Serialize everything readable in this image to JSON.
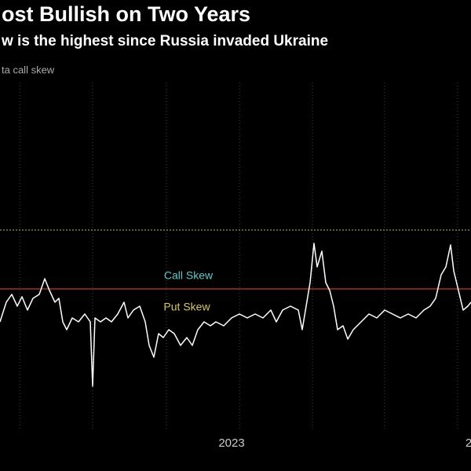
{
  "chart_data": {
    "type": "line",
    "title": "ost Bullish on Two Years",
    "subtitle": "w is the highest since Russia invaded Ukraine",
    "y_label": "ta call skew",
    "xlim": [
      0,
      600
    ],
    "ylim": [
      0,
      500
    ],
    "xgrid": [
      25,
      118,
      212,
      305,
      398,
      490,
      583
    ],
    "xticks": [
      {
        "value": 295,
        "label": "2023"
      },
      {
        "value": 597,
        "label": "2"
      }
    ],
    "series": [
      {
        "name": null,
        "color": "#ffffff",
        "x": [
          0,
          8,
          15,
          22,
          28,
          35,
          42,
          50,
          57,
          63,
          70,
          75,
          80,
          85,
          92,
          100,
          108,
          115,
          118,
          121,
          128,
          135,
          142,
          150,
          158,
          163,
          170,
          178,
          185,
          190,
          196,
          202,
          208,
          215,
          222,
          230,
          238,
          245,
          252,
          260,
          268,
          275,
          285,
          295,
          305,
          315,
          325,
          335,
          345,
          352,
          360,
          370,
          380,
          385,
          390,
          395,
          400,
          404,
          410,
          415,
          420,
          425,
          430,
          437,
          443,
          450,
          460,
          470,
          480,
          490,
          500,
          510,
          520,
          530,
          540,
          548,
          555,
          562,
          568,
          574,
          578,
          584,
          590,
          596,
          600
        ],
        "values": [
          190,
          215,
          225,
          210,
          222,
          205,
          220,
          225,
          245,
          230,
          215,
          220,
          190,
          180,
          195,
          190,
          200,
          190,
          108,
          195,
          190,
          195,
          190,
          200,
          215,
          195,
          205,
          210,
          190,
          160,
          145,
          175,
          170,
          180,
          175,
          160,
          170,
          160,
          180,
          190,
          185,
          190,
          185,
          195,
          200,
          195,
          200,
          195,
          205,
          190,
          205,
          210,
          205,
          180,
          210,
          240,
          290,
          260,
          280,
          240,
          230,
          210,
          180,
          185,
          168,
          180,
          190,
          200,
          195,
          205,
          200,
          195,
          200,
          195,
          205,
          210,
          220,
          250,
          260,
          288,
          255,
          230,
          205,
          210,
          215
        ]
      }
    ],
    "reference_lines": [
      {
        "value": 307,
        "color": "#9c963c",
        "style": "dotted"
      },
      {
        "value": 232,
        "color": "#c0392b",
        "style": "solid"
      }
    ],
    "annotations": [
      {
        "text": "Call Skew",
        "x": 240,
        "y": 248,
        "color": "#5fc7c7"
      },
      {
        "text": "Put Skew",
        "x": 238,
        "y": 208,
        "color": "#d6c56a"
      }
    ]
  }
}
